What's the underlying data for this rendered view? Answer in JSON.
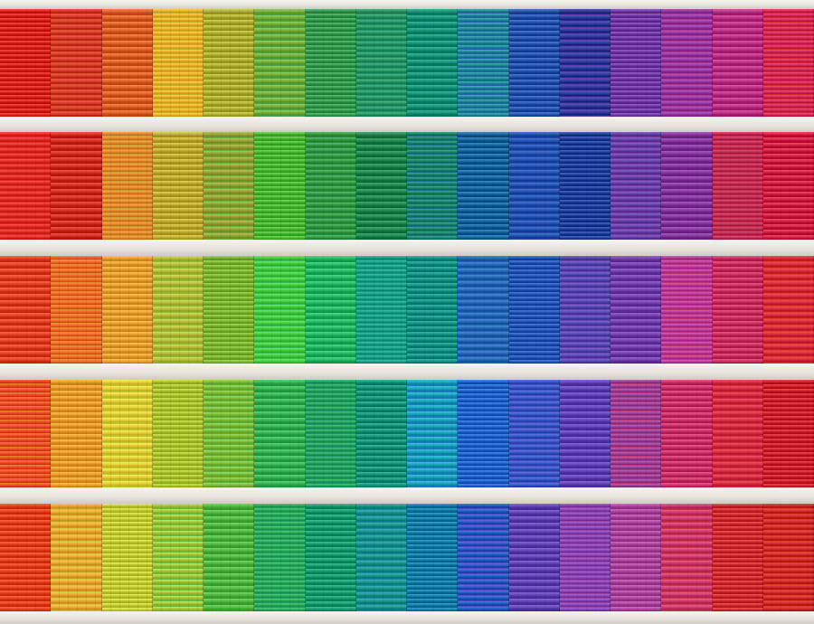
{
  "image": {
    "subject": "building-facade-rainbow-louvre-panels",
    "band_count": 5,
    "panel_count_per_band": 16,
    "bands": [
      [
        "#e0302a",
        "#d63a2c",
        "#e4692f",
        "#f2b62d",
        "#b7b83a",
        "#76b43f",
        "#3fa45a",
        "#2f9a66",
        "#1f9a80",
        "#2a8fa0",
        "#2f5db8",
        "#2f3c9e",
        "#7c44b0",
        "#9a3aa4",
        "#c23a8c",
        "#d6305c"
      ],
      [
        "#e5322c",
        "#d8382c",
        "#e88a2e",
        "#c9b43a",
        "#9aa63a",
        "#54c03e",
        "#3aa04a",
        "#2a8e58",
        "#228a70",
        "#236ea4",
        "#2a58b8",
        "#2b4ba6",
        "#6c46ae",
        "#8e3fa6",
        "#c2345a",
        "#d82c4c"
      ],
      [
        "#e9492e",
        "#ec6a2c",
        "#f0a838",
        "#b8c23e",
        "#86c03a",
        "#4ad244",
        "#2fbf6c",
        "#1fa68a",
        "#1f9a8e",
        "#2a6fb8",
        "#3060c2",
        "#5b4cb6",
        "#7c48b6",
        "#c0409e",
        "#d23a6a",
        "#d8303f"
      ],
      [
        "#ec4a2a",
        "#f0a536",
        "#e6d23a",
        "#b4cc3a",
        "#84c23e",
        "#3fba5a",
        "#2ca864",
        "#1f9c82",
        "#22a6c0",
        "#2e6ed0",
        "#3c5ccc",
        "#6a4cc0",
        "#a0449c",
        "#d23c72",
        "#d8344a",
        "#d42e36"
      ],
      [
        "#ec4a28",
        "#eaa836",
        "#cdd63c",
        "#a6cc3e",
        "#58c04a",
        "#30b060",
        "#22a478",
        "#1e9890",
        "#1f86b0",
        "#2b5ec6",
        "#6a4cbc",
        "#8a48b8",
        "#b44ea6",
        "#d03f70",
        "#d8383c",
        "#cf2e30"
      ]
    ]
  }
}
